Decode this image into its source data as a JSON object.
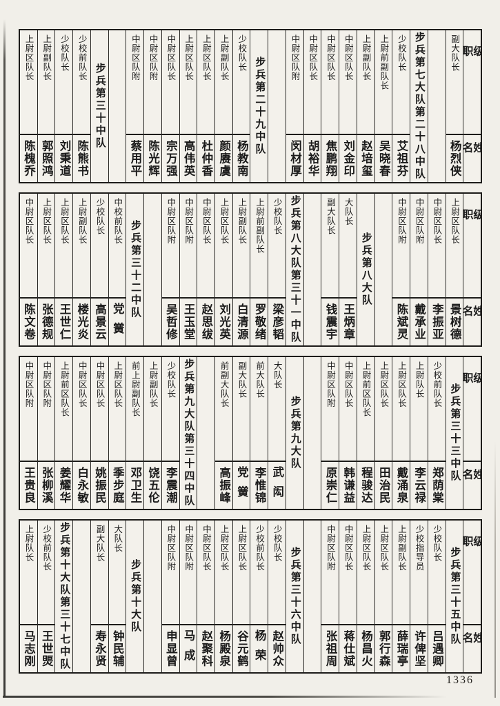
{
  "document": {
    "page_number": "1336"
  },
  "header": {
    "rank_label": "级职",
    "name_label": "姓名"
  },
  "bands": [
    {
      "columns": [
        {
          "type": "header"
        },
        {
          "type": "officer",
          "rank": "副大队长",
          "name": "杨烈侠"
        },
        {
          "type": "spacer"
        },
        {
          "type": "unit",
          "title": "步兵第七大队第二十八中队"
        },
        {
          "type": "officer",
          "rank": "少校队长",
          "name": "艾祖芬"
        },
        {
          "type": "officer",
          "rank": "上尉前副队长",
          "name": "吴晓春"
        },
        {
          "type": "officer",
          "rank": "上尉副队长",
          "name": "赵培玺"
        },
        {
          "type": "officer",
          "rank": "中尉区队长",
          "name": "刘金印"
        },
        {
          "type": "officer",
          "rank": "中尉区队长",
          "name": "焦鹏翔"
        },
        {
          "type": "officer",
          "rank": "中尉区队长",
          "name": "胡裕华"
        },
        {
          "type": "officer",
          "rank": "中尉区队附",
          "name": "闵材厚"
        },
        {
          "type": "spacer"
        },
        {
          "type": "unit",
          "title": "步兵第二十九中队"
        },
        {
          "type": "officer",
          "rank": "少校队长",
          "name": "杨教南"
        },
        {
          "type": "officer",
          "rank": "上尉副队长",
          "name": "颜赓虞"
        },
        {
          "type": "officer",
          "rank": "上尉区队长",
          "name": "杜仲香"
        },
        {
          "type": "officer",
          "rank": "上尉区队长",
          "name": "高伟英"
        },
        {
          "type": "officer",
          "rank": "中尉区队长",
          "name": "宗万强"
        },
        {
          "type": "officer",
          "rank": "中尉区队附",
          "name": "陈光辉"
        },
        {
          "type": "officer",
          "rank": "中尉区队附",
          "name": "蔡用平"
        },
        {
          "type": "spacer"
        },
        {
          "type": "unit",
          "title": "步兵第三十中队"
        },
        {
          "type": "officer",
          "rank": "少校前队长",
          "name": "陈熊书"
        },
        {
          "type": "officer",
          "rank": "少校队长",
          "name": "刘秉道"
        },
        {
          "type": "officer",
          "rank": "上尉副队长",
          "name": "郭照鸿"
        },
        {
          "type": "officer",
          "rank": "上尉区队长",
          "name": "陈槐乔"
        }
      ]
    },
    {
      "columns": [
        {
          "type": "header"
        },
        {
          "type": "officer",
          "rank": "上尉区队长",
          "name": "景树德"
        },
        {
          "type": "officer",
          "rank": "中尉区队长",
          "name": "李振亚"
        },
        {
          "type": "officer",
          "rank": "中尉区队附",
          "name": "戴承业"
        },
        {
          "type": "officer",
          "rank": "中尉区队附",
          "name": "陈斌灵"
        },
        {
          "type": "spacer"
        },
        {
          "type": "unit",
          "title": "步兵第八大队"
        },
        {
          "type": "officer",
          "rank": "大队长",
          "name": "王炳章"
        },
        {
          "type": "officer",
          "rank": "副大队长",
          "name": "钱震宇"
        },
        {
          "type": "spacer"
        },
        {
          "type": "unit",
          "title": "步兵第八大队第三十一中队"
        },
        {
          "type": "officer",
          "rank": "少校队长",
          "name": "梁彦韬"
        },
        {
          "type": "officer",
          "rank": "上尉前副队长",
          "name": "罗敬绪"
        },
        {
          "type": "officer",
          "rank": "上尉副队长",
          "name": "白清源"
        },
        {
          "type": "officer",
          "rank": "上尉区队长",
          "name": "刘光英"
        },
        {
          "type": "officer",
          "rank": "中尉区队长",
          "name": "赵思绂"
        },
        {
          "type": "officer",
          "rank": "中尉区队附",
          "name": "王玉堂"
        },
        {
          "type": "officer",
          "rank": "中尉区队附",
          "name": "吴哲修"
        },
        {
          "type": "spacer"
        },
        {
          "type": "unit",
          "title": "步兵第三十二中队"
        },
        {
          "type": "officer",
          "rank": "中校前队长",
          "name": "党黉"
        },
        {
          "type": "officer",
          "rank": "少校队长",
          "name": "高景云"
        },
        {
          "type": "officer",
          "rank": "上尉副队长",
          "name": "楼光炎"
        },
        {
          "type": "officer",
          "rank": "上尉区队长",
          "name": "王世仁"
        },
        {
          "type": "officer",
          "rank": "上尉区队长",
          "name": "张德规"
        },
        {
          "type": "officer",
          "rank": "中尉区队长",
          "name": "陈文卷"
        }
      ]
    },
    {
      "columns": [
        {
          "type": "header"
        },
        {
          "type": "unit",
          "title": "步兵第三十三中队"
        },
        {
          "type": "officer",
          "rank": "少校前队长",
          "name": "郑荫棠"
        },
        {
          "type": "officer",
          "rank": "上尉队长",
          "name": "李云禄"
        },
        {
          "type": "officer",
          "rank": "上尉区队长",
          "name": "戴涌泉"
        },
        {
          "type": "officer",
          "rank": "上尉区队长",
          "name": "田治民"
        },
        {
          "type": "officer",
          "rank": "上尉前区队长",
          "name": "程骏达"
        },
        {
          "type": "officer",
          "rank": "中尉区队长",
          "name": "韩谦益"
        },
        {
          "type": "officer",
          "rank": "中尉区队附",
          "name": "原崇仁"
        },
        {
          "type": "spacer"
        },
        {
          "type": "unit",
          "title": "步兵第九大队"
        },
        {
          "type": "officer",
          "rank": "大队长",
          "name": "武闳"
        },
        {
          "type": "officer",
          "rank": "前大队长",
          "name": "李惟锦"
        },
        {
          "type": "officer",
          "rank": "副大队长",
          "name": "党黉"
        },
        {
          "type": "officer",
          "rank": "前副大队长",
          "name": "高振峰"
        },
        {
          "type": "spacer"
        },
        {
          "type": "unit",
          "title": "步兵第九大队第三十四中队"
        },
        {
          "type": "officer",
          "rank": "少校队长",
          "name": "李震潮"
        },
        {
          "type": "officer",
          "rank": "上尉副队长",
          "name": "饶五伦"
        },
        {
          "type": "officer",
          "rank": "前上尉副队长",
          "name": "邓卫生"
        },
        {
          "type": "officer",
          "rank": "上尉区队长",
          "name": "季步庭"
        },
        {
          "type": "officer",
          "rank": "中尉区队长",
          "name": "姚振民"
        },
        {
          "type": "officer",
          "rank": "中尉区队长",
          "name": "白永敏"
        },
        {
          "type": "officer",
          "rank": "上尉前区队长",
          "name": "姜耀华"
        },
        {
          "type": "officer",
          "rank": "中尉区队附",
          "name": "张柳溪"
        },
        {
          "type": "officer",
          "rank": "中尉区队附",
          "name": "王贵良"
        }
      ]
    },
    {
      "columns": [
        {
          "type": "header"
        },
        {
          "type": "unit",
          "title": "步兵第三十五中队"
        },
        {
          "type": "officer",
          "rank": "少校队长",
          "name": "吕遇卿"
        },
        {
          "type": "officer",
          "rank": "少校指导员",
          "name": "许俾坚"
        },
        {
          "type": "officer",
          "rank": "上尉副队长",
          "name": "薛瑞亭"
        },
        {
          "type": "officer",
          "rank": "上尉区队长",
          "name": "郭行森"
        },
        {
          "type": "officer",
          "rank": "上尉区队长",
          "name": "杨昌火"
        },
        {
          "type": "officer",
          "rank": "中尉区队长",
          "name": "蒋仕斌"
        },
        {
          "type": "officer",
          "rank": "中尉区队附",
          "name": "张祖周"
        },
        {
          "type": "spacer"
        },
        {
          "type": "unit",
          "title": "步兵第三十六中队"
        },
        {
          "type": "officer",
          "rank": "少校队长",
          "name": "赵帅众"
        },
        {
          "type": "officer",
          "rank": "少校前队长",
          "name": "杨荣"
        },
        {
          "type": "officer",
          "rank": "上尉区队长",
          "name": "谷元鹤"
        },
        {
          "type": "officer",
          "rank": "上尉区队长",
          "name": "杨殿泉"
        },
        {
          "type": "officer",
          "rank": "中尉区队长",
          "name": "赵聚科"
        },
        {
          "type": "officer",
          "rank": "中尉区队附",
          "name": "马成"
        },
        {
          "type": "officer",
          "rank": "中尉区队附",
          "name": "申显曾"
        },
        {
          "type": "spacer"
        },
        {
          "type": "unit",
          "title": "步兵第十大队"
        },
        {
          "type": "officer",
          "rank": "大队长",
          "name": "钟民辅"
        },
        {
          "type": "officer",
          "rank": "副大队长",
          "name": "寿永贤"
        },
        {
          "type": "spacer"
        },
        {
          "type": "unit",
          "title": "步兵第十大队第三十七中队"
        },
        {
          "type": "officer",
          "rank": "少校前队长",
          "name": "王世煚"
        },
        {
          "type": "officer",
          "rank": "上尉队长",
          "name": "马志刚"
        }
      ]
    }
  ]
}
